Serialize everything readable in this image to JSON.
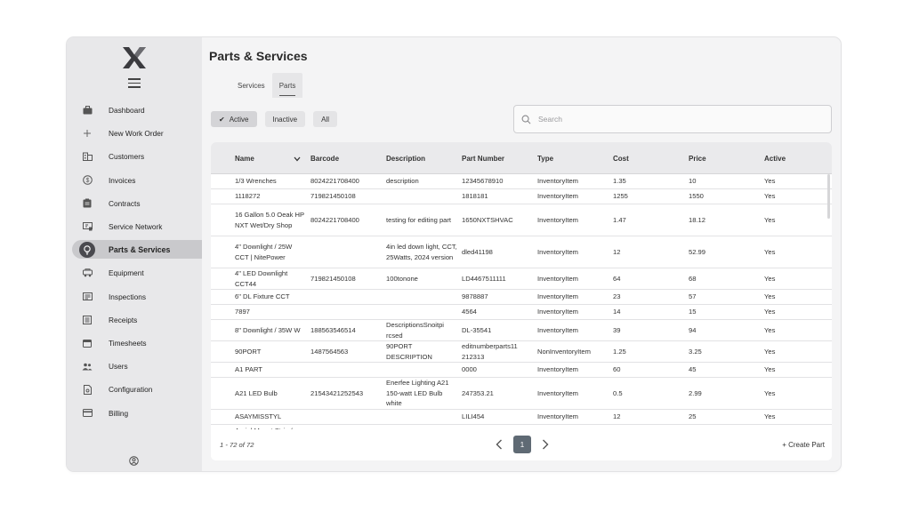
{
  "page": {
    "title": "Parts & Services"
  },
  "tabs": [
    {
      "label": "Services"
    },
    {
      "label": "Parts",
      "active": true
    }
  ],
  "filters": [
    {
      "label": "Active",
      "selected": true,
      "icon": "check-icon"
    },
    {
      "label": "Inactive"
    },
    {
      "label": "All"
    }
  ],
  "search": {
    "placeholder": "Search",
    "value": "",
    "icon": "search-icon"
  },
  "sidebar": {
    "items": [
      {
        "label": "Dashboard",
        "icon": "briefcase-icon"
      },
      {
        "label": "New Work Order",
        "icon": "plus-icon"
      },
      {
        "label": "Customers",
        "icon": "building-icon"
      },
      {
        "label": "Invoices",
        "icon": "dollar-circle-icon"
      },
      {
        "label": "Contracts",
        "icon": "clipboard-icon"
      },
      {
        "label": "Service Network",
        "icon": "network-icon"
      },
      {
        "label": "Parts & Services",
        "icon": "lightbulb-icon",
        "active": true
      },
      {
        "label": "Equipment",
        "icon": "equipment-icon"
      },
      {
        "label": "Inspections",
        "icon": "inspection-icon"
      },
      {
        "label": "Receipts",
        "icon": "receipt-icon"
      },
      {
        "label": "Timesheets",
        "icon": "calendar-icon"
      },
      {
        "label": "Users",
        "icon": "users-icon"
      },
      {
        "label": "Configuration",
        "icon": "config-file-icon"
      },
      {
        "label": "Billing",
        "icon": "credit-card-icon"
      }
    ]
  },
  "table": {
    "columns": [
      "Name",
      "Barcode",
      "Description",
      "Part Number",
      "Type",
      "Cost",
      "Price",
      "Active"
    ],
    "sort_icon": "chevron-down-icon",
    "rows": [
      {
        "name": "1/3 Wrenches",
        "barcode": "8024221708400",
        "description": "description",
        "part_number": "12345678910",
        "type": "InventoryItem",
        "cost": "1.35",
        "price": "10",
        "active": "Yes"
      },
      {
        "name": "1118272",
        "barcode": "719821450108",
        "description": "",
        "part_number": "1818181",
        "type": "InventoryItem",
        "cost": "1255",
        "price": "1550",
        "active": "Yes"
      },
      {
        "name": "16 Gallon 5.0 Oeak HP NXT Wet/Dry Shop",
        "barcode": "8024221708400",
        "description": "testing for editing part",
        "part_number": "1650NXTSHVAC",
        "type": "InventoryItem",
        "cost": "1.47",
        "price": "18.12",
        "active": "Yes"
      },
      {
        "name": "4\" Downlight / 25W CCT | NitePower",
        "barcode": "",
        "description": "4in led down light, CCT, 25Watts, 2024 version",
        "part_number": "dled41198",
        "type": "InventoryItem",
        "cost": "12",
        "price": "52.99",
        "active": "Yes"
      },
      {
        "name": "4\" LED Downlight CCT44",
        "barcode": "719821450108",
        "description": "100tonone",
        "part_number": "LD4467511111",
        "type": "InventoryItem",
        "cost": "64",
        "price": "68",
        "active": "Yes"
      },
      {
        "name": "6\" DL Fixture CCT",
        "barcode": "",
        "description": "",
        "part_number": "9878887",
        "type": "InventoryItem",
        "cost": "23",
        "price": "57",
        "active": "Yes"
      },
      {
        "name": "7897",
        "barcode": "",
        "description": "",
        "part_number": "4564",
        "type": "InventoryItem",
        "cost": "14",
        "price": "15",
        "active": "Yes"
      },
      {
        "name": "8\" Downlight / 35W W",
        "barcode": "188563546514",
        "description": "DescriptionsSnoitpi rcsed",
        "part_number": "DL-35541",
        "type": "InventoryItem",
        "cost": "39",
        "price": "94",
        "active": "Yes"
      },
      {
        "name": "90PORT",
        "barcode": "1487564563",
        "description": "90PORT DESCRIPTION",
        "part_number": "editnumberparts11 212313",
        "type": "NonInventoryItem",
        "cost": "1.25",
        "price": "3.25",
        "active": "Yes"
      },
      {
        "name": "A1 PART",
        "barcode": "",
        "description": "",
        "part_number": "0000",
        "type": "InventoryItem",
        "cost": "60",
        "price": "45",
        "active": "Yes"
      },
      {
        "name": "A21 LED Bulb",
        "barcode": "21543421252543",
        "description": "Enerfee Lighting A21 150-watt LED Bulb white",
        "part_number": "247353.21",
        "type": "InventoryItem",
        "cost": "0.5",
        "price": "2.99",
        "active": "Yes"
      },
      {
        "name": "ASAYMISSTYL",
        "barcode": "",
        "description": "",
        "part_number": "LILI454",
        "type": "InventoryItem",
        "cost": "12",
        "price": "25",
        "active": "Yes"
      },
      {
        "name": "Aerial Mount Strip /",
        "barcode": "",
        "description": "",
        "part_number": "",
        "type": "",
        "cost": "",
        "price": "",
        "active": ""
      }
    ]
  },
  "footer": {
    "range": "1 - 72 of 72",
    "current_page": "1",
    "create_label": "+ Create Part",
    "prev_icon": "chevron-left-icon",
    "next_icon": "chevron-right-icon"
  },
  "colors": {
    "sidebar_bg": "#e8e8ea",
    "active_pill": "#c9c9cc",
    "accent": "#5f6a74"
  }
}
